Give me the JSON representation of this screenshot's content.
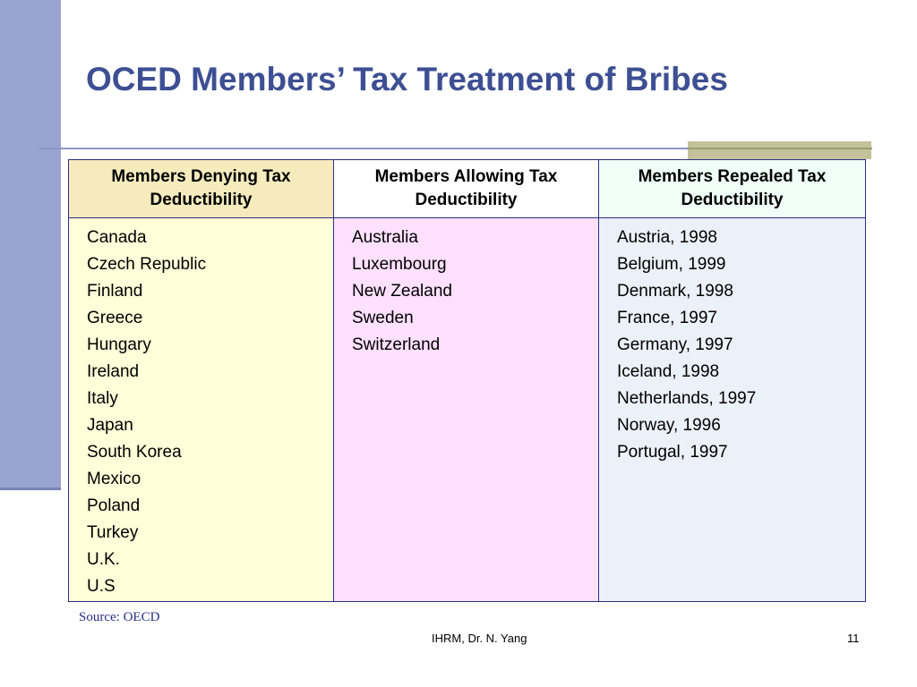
{
  "slide": {
    "title": "OCED Members’ Tax Treatment of Bribes",
    "source": "Source: OECD",
    "footer": "IHRM, Dr. N. Yang",
    "page_number": "11"
  },
  "table": {
    "headers": {
      "denying_line1": "Members Denying Tax",
      "denying_line2": "Deductibility",
      "allowing_line1": "Members Allowing Tax",
      "allowing_line2": "Deductibility",
      "repealed_line1": "Members Repealed Tax",
      "repealed_line2": "Deductibility"
    },
    "denying": [
      "Canada",
      "Czech Republic",
      "Finland",
      "Greece",
      "Hungary",
      "Ireland",
      "Italy",
      "Japan",
      "South Korea",
      "Mexico",
      "Poland",
      "Turkey",
      "U.K.",
      "U.S"
    ],
    "allowing": [
      "Australia",
      "Luxembourg",
      "New Zealand",
      "Sweden",
      "Switzerland"
    ],
    "repealed": [
      "Austria, 1998",
      "Belgium, 1999",
      "Denmark, 1998",
      "France, 1997",
      "Germany, 1997",
      "Iceland, 1998",
      "Netherlands, 1997",
      "Norway, 1996",
      "Portugal, 1997"
    ]
  },
  "colors": {
    "title": "#3d4f93",
    "side_bar": "#99a3cf",
    "table_border": "#2b2e86",
    "denying_body": "#ffffd9",
    "allowing_body": "#ffe0ff",
    "repealed_body": "#ecf0f9"
  }
}
